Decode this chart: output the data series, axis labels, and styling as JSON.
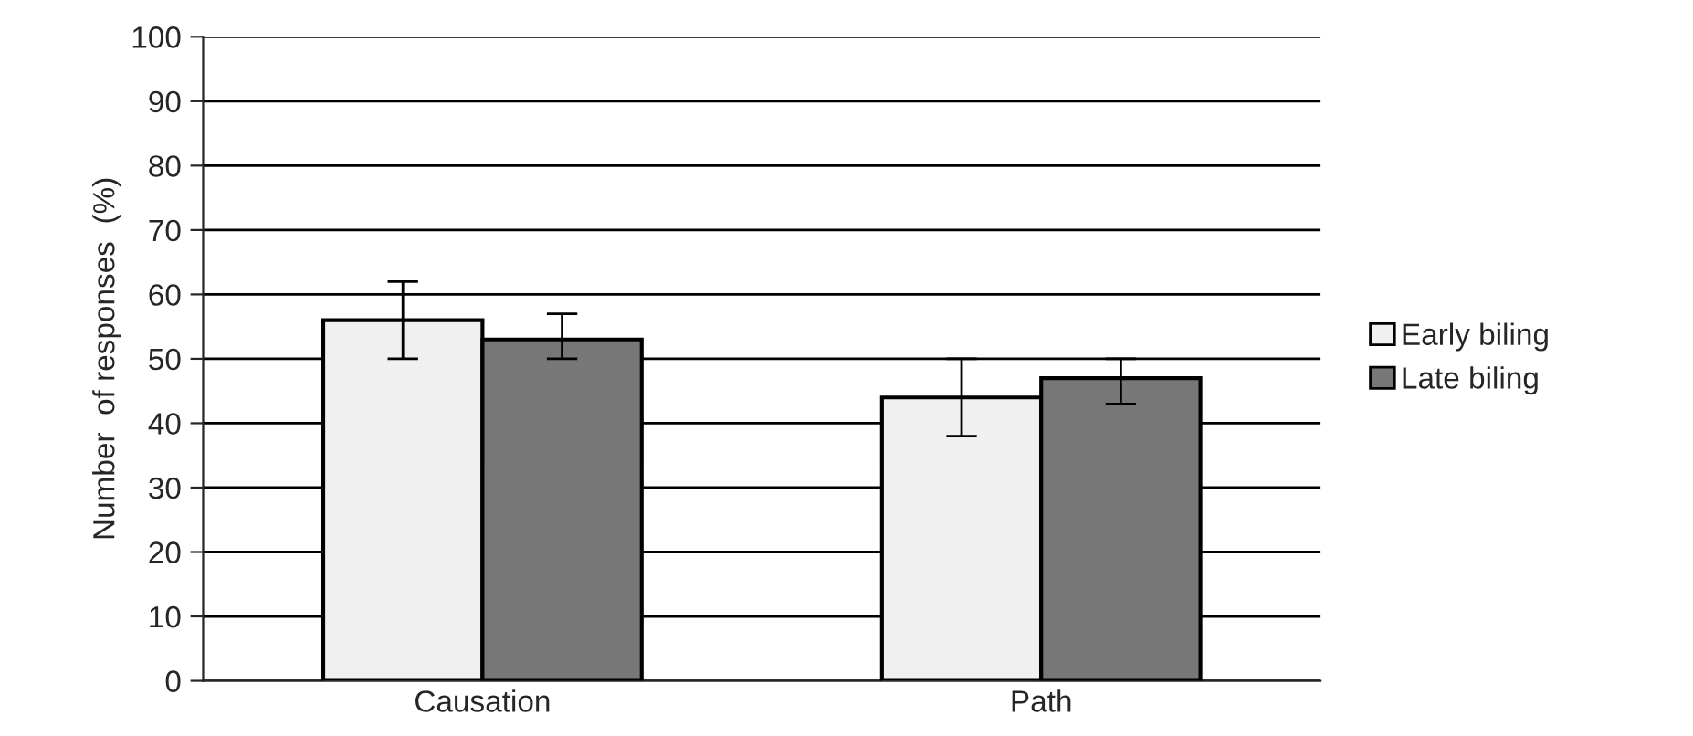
{
  "chart_data": {
    "type": "bar",
    "ylabel": "Number  of responses  (%)",
    "categories": [
      "Causation",
      "Path"
    ],
    "series": [
      {
        "name": "Early biling",
        "color": "#f0f0f0",
        "values": [
          56,
          44
        ],
        "errors": [
          6,
          6
        ]
      },
      {
        "name": "Late biling",
        "color": "#777777",
        "values": [
          53,
          47
        ],
        "errors": [
          [
            50,
            57
          ],
          [
            43,
            50
          ]
        ]
      }
    ],
    "ylim": [
      0,
      100
    ],
    "yticks": [
      0,
      10,
      20,
      30,
      40,
      50,
      60,
      70,
      80,
      90,
      100
    ],
    "grid": "y",
    "legend": "right"
  }
}
